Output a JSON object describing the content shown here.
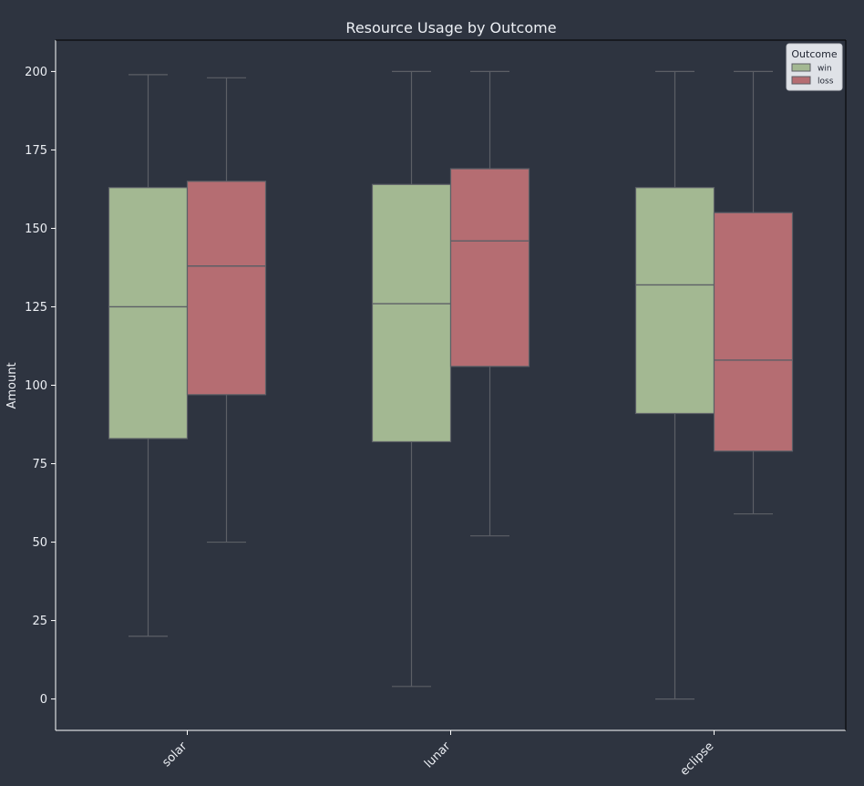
{
  "chart_data": {
    "type": "boxplot",
    "title": "Resource Usage by Outcome",
    "xlabel": "",
    "ylabel": "Amount",
    "ylim": [
      -10,
      210
    ],
    "yticks": [
      0,
      25,
      50,
      75,
      100,
      125,
      150,
      175,
      200
    ],
    "categories": [
      "solar",
      "lunar",
      "eclipse"
    ],
    "grid": false,
    "legend": {
      "title": "Outcome",
      "placement": "top-right"
    },
    "series": [
      {
        "name": "win",
        "color": "#a3b892",
        "boxes": [
          {
            "category": "solar",
            "whisker_low": 20,
            "q1": 83,
            "median": 125,
            "q3": 163,
            "whisker_high": 199
          },
          {
            "category": "lunar",
            "whisker_low": 4,
            "q1": 82,
            "median": 126,
            "q3": 164,
            "whisker_high": 200
          },
          {
            "category": "eclipse",
            "whisker_low": 0,
            "q1": 91,
            "median": 132,
            "q3": 163,
            "whisker_high": 200
          }
        ]
      },
      {
        "name": "loss",
        "color": "#b56d72",
        "boxes": [
          {
            "category": "solar",
            "whisker_low": 50,
            "q1": 97,
            "median": 138,
            "q3": 165,
            "whisker_high": 198
          },
          {
            "category": "lunar",
            "whisker_low": 52,
            "q1": 106,
            "median": 146,
            "q3": 169,
            "whisker_high": 200
          },
          {
            "category": "eclipse",
            "whisker_low": 59,
            "q1": 79,
            "median": 108,
            "q3": 155,
            "whisker_high": 200
          }
        ]
      }
    ]
  }
}
